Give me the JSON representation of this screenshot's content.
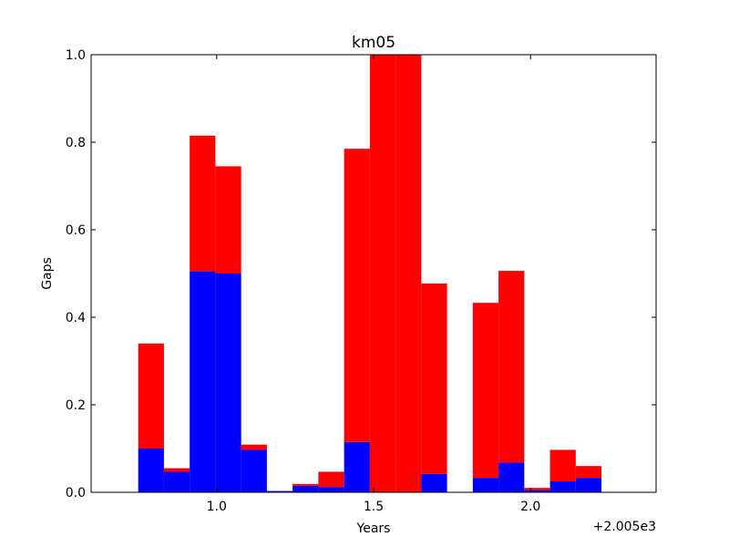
{
  "chart_data": {
    "type": "bar",
    "title": "km05",
    "xlabel": "Years",
    "ylabel": "Gaps",
    "offset_label": "+2.005e3",
    "xlim": [
      0.6,
      2.4
    ],
    "ylim": [
      0,
      1.0
    ],
    "xticks": [
      {
        "value": 1.0,
        "label": "1.0"
      },
      {
        "value": 1.5,
        "label": "1.5"
      },
      {
        "value": 2.0,
        "label": "2.0"
      }
    ],
    "yticks": [
      {
        "value": 0.0,
        "label": "0.0"
      },
      {
        "value": 0.2,
        "label": "0.2"
      },
      {
        "value": 0.4,
        "label": "0.4"
      },
      {
        "value": 0.6,
        "label": "0.6"
      },
      {
        "value": 0.8,
        "label": "0.8"
      },
      {
        "value": 1.0,
        "label": "1.0"
      }
    ],
    "grid": false,
    "legend": "none",
    "stacked": true,
    "bar_width": 0.082,
    "x": [
      0.75,
      0.832,
      0.914,
      0.996,
      1.078,
      1.16,
      1.242,
      1.324,
      1.406,
      1.488,
      1.57,
      1.652,
      1.734,
      1.816,
      1.898,
      1.98,
      2.062,
      2.144
    ],
    "series": [
      {
        "color": "#0000ff",
        "values": [
          0.1,
          0.047,
          0.505,
          0.5,
          0.097,
          0.003,
          0.015,
          0.012,
          0.115,
          0.0,
          0.0,
          0.042,
          0.0,
          0.033,
          0.068,
          0.005,
          0.025,
          0.033
        ]
      },
      {
        "color": "#ff0000",
        "values": [
          0.24,
          0.008,
          0.31,
          0.245,
          0.012,
          0.0,
          0.004,
          0.035,
          0.67,
          1.0,
          1.0,
          0.435,
          0.0,
          0.4,
          0.438,
          0.005,
          0.072,
          0.027
        ]
      }
    ]
  }
}
